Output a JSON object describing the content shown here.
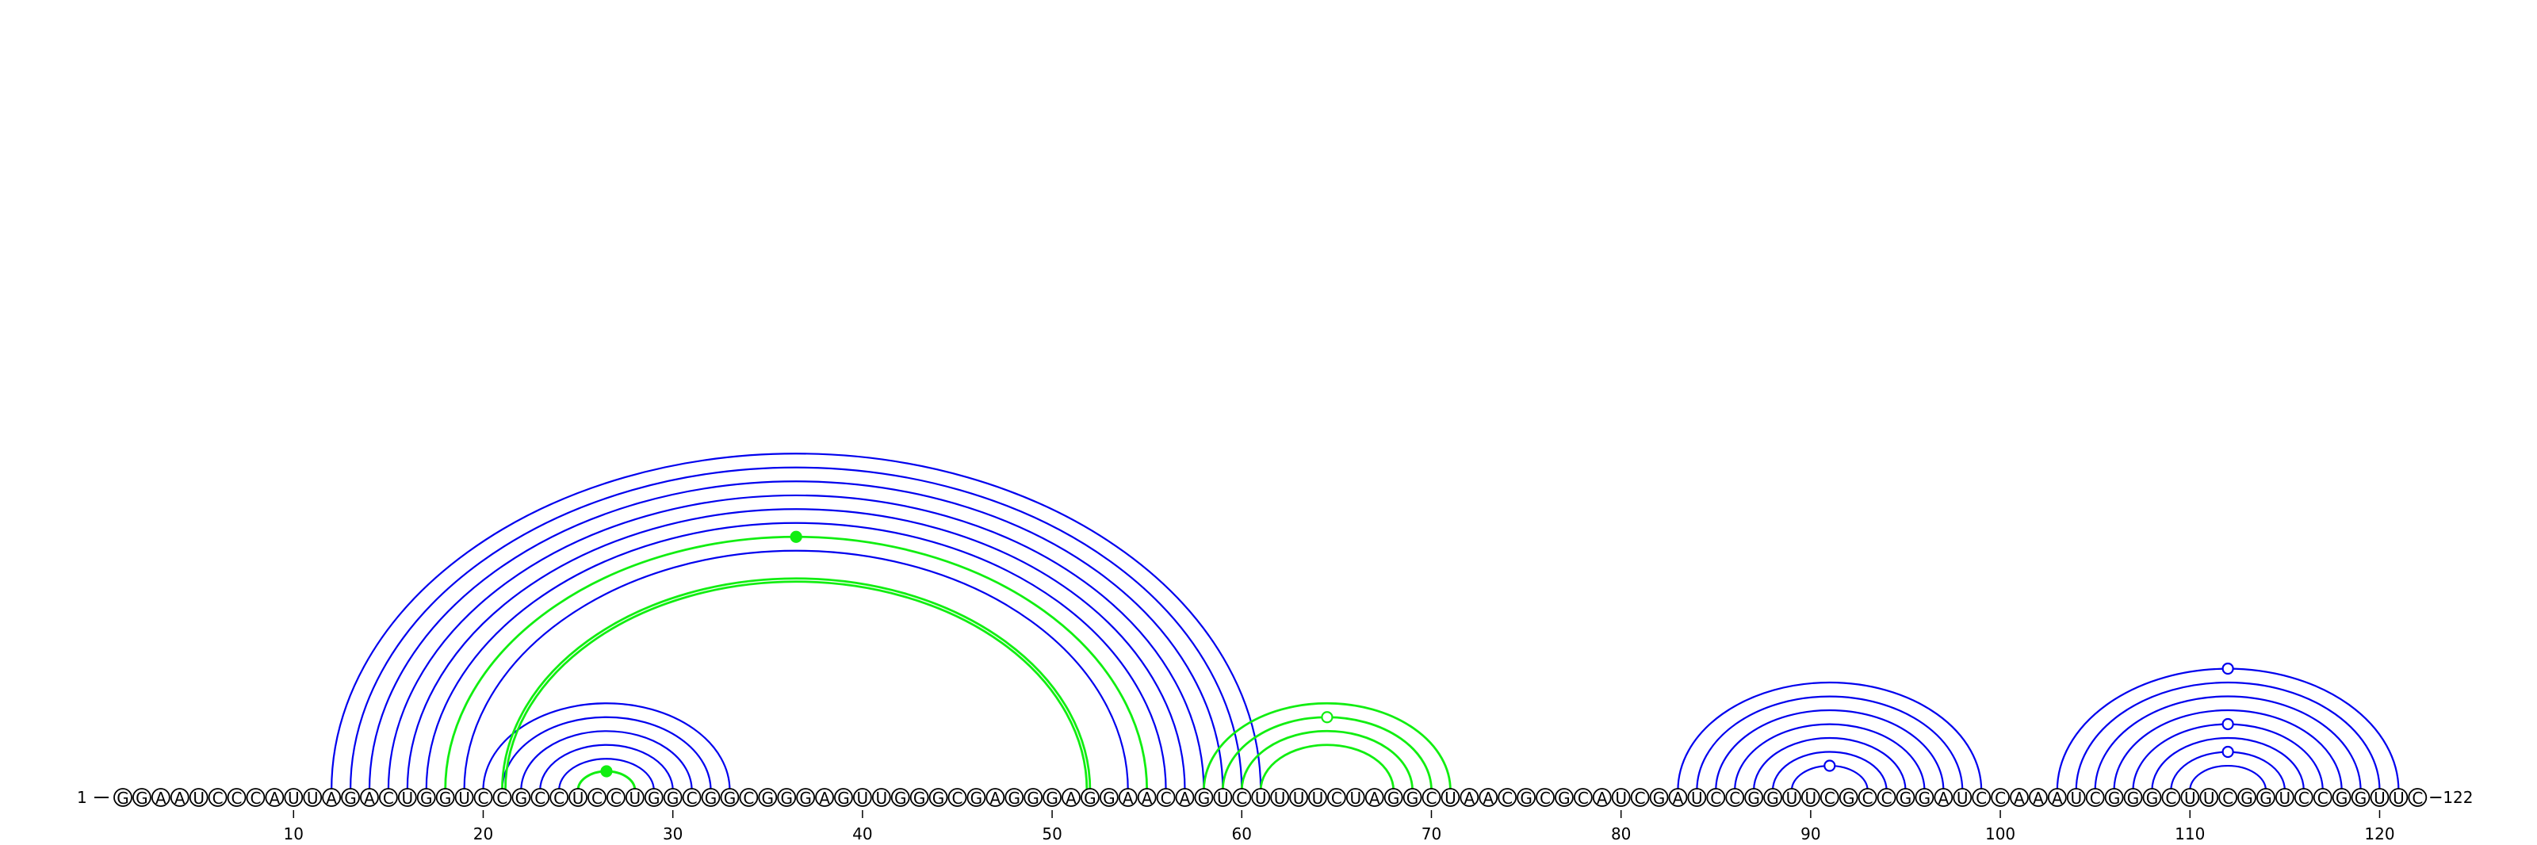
{
  "sequence": "GGAAUCCCAUUAGACUGGUCCGCCUCCUGGCGGCGGGAGUUGGGCGAGGGAGGAACAGUCUUUUCUAGGCUAACGCGCAUCGAUCCGGUUCGCCGGAUCCAAAUCGGGCUUCGGUCCGGUUC",
  "start_label": "1",
  "end_label": "122",
  "ticks": [
    "10",
    "20",
    "30",
    "40",
    "50",
    "60",
    "70",
    "80",
    "90",
    "100",
    "110",
    "120"
  ],
  "colors": {
    "blue": "#0000ee",
    "green": "#11ee11",
    "outline": "#000000"
  },
  "arcs": {
    "blue_wide": [
      [
        12,
        61
      ],
      [
        13,
        60
      ],
      [
        14,
        59
      ],
      [
        15,
        58
      ],
      [
        16,
        57
      ],
      [
        17,
        56
      ],
      [
        19,
        54
      ]
    ],
    "blue_hairpin1": [
      [
        20,
        33
      ],
      [
        21,
        32
      ],
      [
        22,
        31
      ],
      [
        23,
        30
      ],
      [
        24,
        29
      ],
      [
        25,
        28
      ]
    ],
    "green_wide_dot": [
      [
        18,
        55
      ]
    ],
    "green_wide_double": [
      [
        21,
        52
      ]
    ],
    "green_dot_small": [
      [
        25,
        28
      ]
    ],
    "green_pk": [
      [
        58,
        71
      ],
      [
        59,
        70
      ],
      [
        60,
        69
      ],
      [
        61,
        68
      ]
    ],
    "blue_hairpin2": [
      [
        83,
        99
      ],
      [
        84,
        98
      ],
      [
        85,
        97
      ],
      [
        86,
        96
      ],
      [
        87,
        95
      ],
      [
        88,
        94
      ],
      [
        89,
        93
      ]
    ],
    "blue_hairpin3": [
      [
        103,
        121
      ],
      [
        104,
        120
      ],
      [
        105,
        119
      ],
      [
        106,
        118
      ],
      [
        107,
        117
      ],
      [
        108,
        116
      ],
      [
        109,
        115
      ],
      [
        110,
        114
      ]
    ]
  },
  "markers": [
    {
      "pos": 36.5,
      "height_of": [
        18,
        55
      ],
      "color": "green",
      "filled": true
    },
    {
      "pos": 26.5,
      "height_of": [
        25,
        28
      ],
      "color": "green",
      "filled": true
    },
    {
      "pos": 64.5,
      "height_of": [
        59,
        70
      ],
      "color": "green",
      "filled": false
    },
    {
      "pos": 91,
      "height_of": [
        89,
        93
      ],
      "color": "blue",
      "filled": false
    },
    {
      "pos": 112,
      "height_of": [
        103,
        121
      ],
      "color": "blue",
      "filled": false
    },
    {
      "pos": 112,
      "height_of": [
        107,
        117
      ],
      "color": "blue",
      "filled": false
    },
    {
      "pos": 112,
      "height_of": [
        109,
        115
      ],
      "color": "blue",
      "filled": false
    }
  ]
}
